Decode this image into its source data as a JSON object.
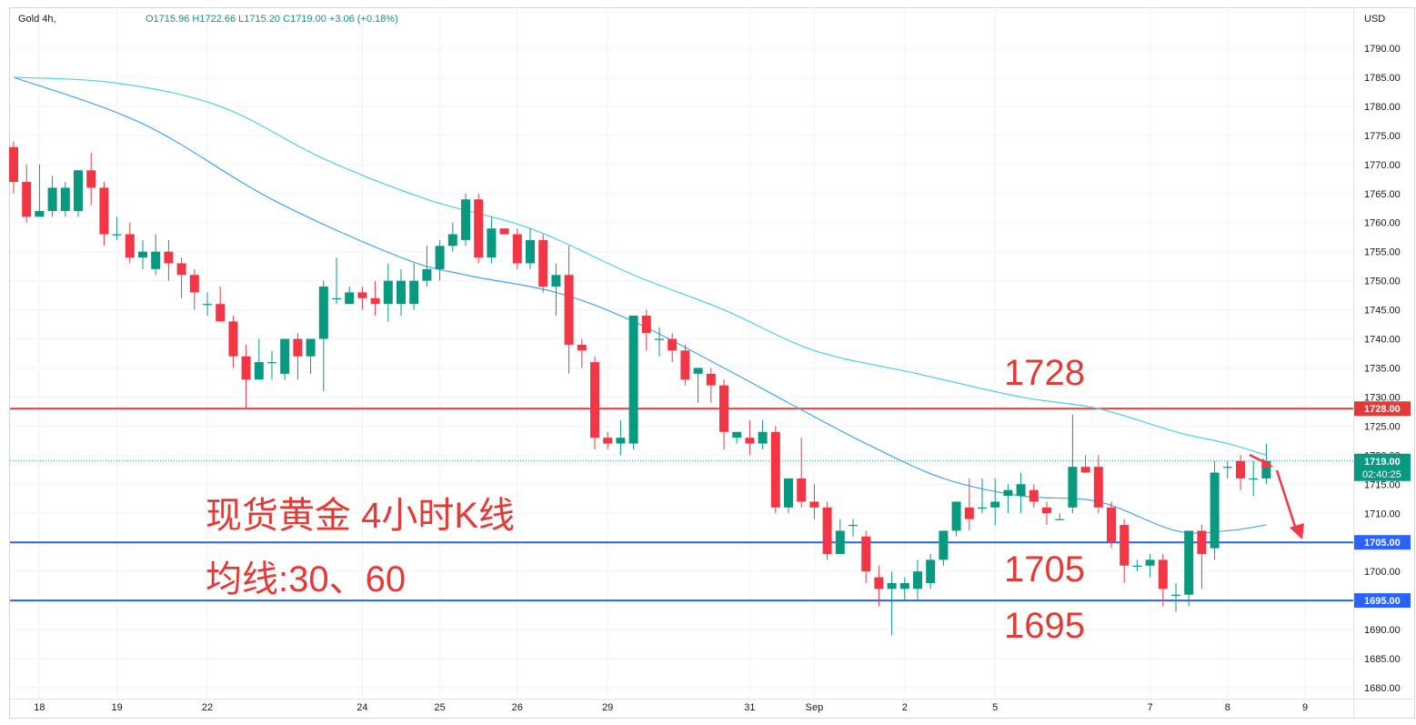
{
  "header": {
    "symbol": "Gold",
    "interval": "4h,",
    "open": "O1715.96",
    "high": "H1722.66",
    "low": "L1715.20",
    "close": "C1719.00",
    "change": "+3.06 (+0.18%)"
  },
  "currency": "USD",
  "annotations": {
    "title_line1": "现货黄金 4小时K线",
    "title_line2": "均线:30、60",
    "resistance_text": "1728",
    "support1_text": "1705",
    "support2_text": "1695"
  },
  "price_badges": {
    "last_price": "1719.00",
    "countdown": "02:40:25",
    "resistance": "1728.00",
    "support1": "1705.00",
    "support2": "1695.00"
  },
  "colors": {
    "up": "#089981",
    "down": "#f23645",
    "ma30": "#42a5f5",
    "ma60": "#4dd0e1",
    "resistance_line": "#e53935",
    "support_line": "#2962ff",
    "annotation": "#e53935",
    "grid": "#f0f3fa"
  },
  "chart_data": {
    "type": "candlestick",
    "title": "",
    "y_axis": {
      "range": [
        1678,
        1793
      ],
      "ticks": [
        1680,
        1685,
        1690,
        1695,
        1700,
        1705,
        1710,
        1715,
        1720,
        1725,
        1730,
        1735,
        1740,
        1745,
        1750,
        1755,
        1760,
        1765,
        1770,
        1775,
        1780,
        1785,
        1790
      ]
    },
    "x_axis": {
      "tick_labels": [
        "18",
        "19",
        "22",
        "24",
        "25",
        "26",
        "29",
        "31",
        "Sep",
        "2",
        "5",
        "7",
        "8",
        "9"
      ],
      "tick_bar_index": [
        2,
        8,
        15,
        27,
        33,
        39,
        46,
        57,
        62,
        69,
        76,
        88,
        94,
        100
      ]
    },
    "grid": true,
    "ohlc": [
      [
        1773,
        1774,
        1765,
        1767
      ],
      [
        1767,
        1770,
        1760,
        1761
      ],
      [
        1761,
        1770,
        1761,
        1762
      ],
      [
        1762,
        1768,
        1761,
        1766
      ],
      [
        1762,
        1767,
        1761,
        1766
      ],
      [
        1762,
        1769,
        1761,
        1769
      ],
      [
        1769,
        1772,
        1763,
        1766
      ],
      [
        1766,
        1767,
        1756,
        1758
      ],
      [
        1758,
        1761,
        1757,
        1758
      ],
      [
        1758,
        1760,
        1753,
        1754
      ],
      [
        1754,
        1757,
        1752,
        1755
      ],
      [
        1752,
        1758,
        1751,
        1755
      ],
      [
        1755,
        1757,
        1750,
        1753
      ],
      [
        1753,
        1754,
        1747,
        1751
      ],
      [
        1751,
        1752,
        1745,
        1748
      ],
      [
        1746,
        1748,
        1744,
        1746
      ],
      [
        1746,
        1749,
        1743,
        1743
      ],
      [
        1743,
        1744,
        1735,
        1737
      ],
      [
        1737,
        1739,
        1728,
        1733
      ],
      [
        1733,
        1740,
        1733,
        1736
      ],
      [
        1736,
        1738,
        1733,
        1736
      ],
      [
        1734,
        1740,
        1733,
        1740
      ],
      [
        1740,
        1741,
        1733,
        1737
      ],
      [
        1737,
        1740,
        1734,
        1740
      ],
      [
        1740,
        1750,
        1731,
        1749
      ],
      [
        1747,
        1754,
        1746,
        1747
      ],
      [
        1746,
        1749,
        1746,
        1748
      ],
      [
        1748,
        1749,
        1745,
        1747
      ],
      [
        1747,
        1750,
        1744,
        1746
      ],
      [
        1746,
        1753,
        1743,
        1750
      ],
      [
        1746,
        1752,
        1744,
        1750
      ],
      [
        1746,
        1753,
        1745,
        1750
      ],
      [
        1750,
        1756,
        1749,
        1752
      ],
      [
        1752,
        1757,
        1750,
        1756
      ],
      [
        1756,
        1760,
        1755,
        1758
      ],
      [
        1757,
        1765,
        1756,
        1764
      ],
      [
        1764,
        1765,
        1753,
        1754
      ],
      [
        1754,
        1761,
        1753,
        1759
      ],
      [
        1759,
        1759,
        1758,
        1758
      ],
      [
        1758,
        1759,
        1752,
        1753
      ],
      [
        1753,
        1759,
        1752,
        1757
      ],
      [
        1757,
        1758,
        1748,
        1749
      ],
      [
        1749,
        1753,
        1744,
        1751
      ],
      [
        1751,
        1756,
        1734,
        1739
      ],
      [
        1739,
        1740,
        1735,
        1738
      ],
      [
        1736,
        1737,
        1721,
        1723
      ],
      [
        1723,
        1724,
        1721,
        1722
      ],
      [
        1722,
        1726,
        1720,
        1723
      ],
      [
        1722,
        1744,
        1721,
        1744
      ],
      [
        1744,
        1745,
        1738,
        1741
      ],
      [
        1740,
        1742,
        1737,
        1740
      ],
      [
        1740,
        1741,
        1736,
        1738
      ],
      [
        1738,
        1739,
        1732,
        1733
      ],
      [
        1734,
        1735,
        1729,
        1735
      ],
      [
        1734,
        1735,
        1729,
        1732
      ],
      [
        1732,
        1733,
        1721,
        1724
      ],
      [
        1723,
        1724,
        1722,
        1724
      ],
      [
        1723,
        1726,
        1720,
        1722
      ],
      [
        1722,
        1726,
        1721,
        1724
      ],
      [
        1724,
        1725,
        1710,
        1711
      ],
      [
        1711,
        1716,
        1710,
        1716
      ],
      [
        1716,
        1723,
        1711,
        1712
      ],
      [
        1712,
        1715,
        1709,
        1711
      ],
      [
        1711,
        1712,
        1702,
        1703
      ],
      [
        1703,
        1709,
        1703,
        1707
      ],
      [
        1708,
        1709,
        1706,
        1708
      ],
      [
        1706,
        1707,
        1698,
        1700
      ],
      [
        1699,
        1701,
        1694,
        1697
      ],
      [
        1697,
        1700,
        1689,
        1698
      ],
      [
        1697,
        1699,
        1695,
        1698
      ],
      [
        1697,
        1702,
        1695,
        1700
      ],
      [
        1698,
        1703,
        1697,
        1702
      ],
      [
        1702,
        1706,
        1701,
        1707
      ],
      [
        1707,
        1712,
        1706,
        1712
      ],
      [
        1711,
        1716,
        1707,
        1709
      ],
      [
        1711,
        1716,
        1710,
        1711
      ],
      [
        1711,
        1716,
        1708,
        1712
      ],
      [
        1713,
        1715,
        1710,
        1714
      ],
      [
        1713,
        1717,
        1710,
        1715
      ],
      [
        1714,
        1715,
        1711,
        1712
      ],
      [
        1711,
        1712,
        1708,
        1710
      ],
      [
        1709,
        1710,
        1709,
        1709
      ],
      [
        1711,
        1727,
        1710,
        1718
      ],
      [
        1718,
        1720,
        1717,
        1717
      ],
      [
        1718,
        1720,
        1710,
        1711
      ],
      [
        1711,
        1712,
        1704,
        1705
      ],
      [
        1708,
        1709,
        1698,
        1701
      ],
      [
        1701,
        1702,
        1700,
        1701
      ],
      [
        1701,
        1703,
        1699,
        1702
      ],
      [
        1702,
        1703,
        1694,
        1697
      ],
      [
        1696,
        1698,
        1693,
        1696
      ],
      [
        1696,
        1707,
        1694,
        1707
      ],
      [
        1707,
        1708,
        1697,
        1703
      ],
      [
        1704,
        1719,
        1702,
        1717
      ],
      [
        1718,
        1719,
        1716,
        1718
      ],
      [
        1719,
        1720,
        1714,
        1716
      ],
      [
        1716,
        1719,
        1713,
        1716
      ],
      [
        1716,
        1722,
        1715,
        1719
      ]
    ],
    "series": [
      {
        "key": "ma30",
        "points": [
          [
            0,
            1785
          ],
          [
            10,
            1777
          ],
          [
            20,
            1764
          ],
          [
            30,
            1754
          ],
          [
            35,
            1751
          ],
          [
            42,
            1748
          ],
          [
            48,
            1743
          ],
          [
            55,
            1735
          ],
          [
            60,
            1729
          ],
          [
            66,
            1722
          ],
          [
            72,
            1716
          ],
          [
            78,
            1713
          ],
          [
            84,
            1712
          ],
          [
            90,
            1707
          ],
          [
            94,
            1707
          ],
          [
            97,
            1708
          ]
        ]
      },
      {
        "key": "ma60",
        "points": [
          [
            0,
            1785
          ],
          [
            8,
            1784
          ],
          [
            16,
            1780
          ],
          [
            24,
            1771
          ],
          [
            32,
            1764
          ],
          [
            40,
            1759
          ],
          [
            48,
            1751
          ],
          [
            55,
            1745
          ],
          [
            62,
            1738
          ],
          [
            70,
            1734
          ],
          [
            78,
            1730
          ],
          [
            84,
            1728
          ],
          [
            90,
            1724
          ],
          [
            94,
            1722
          ],
          [
            97,
            1720
          ]
        ]
      }
    ],
    "levels": [
      {
        "key": "resistance",
        "price": 1728
      },
      {
        "key": "support1",
        "price": 1705
      },
      {
        "key": "support2",
        "price": 1695
      }
    ],
    "last_price": 1719
  }
}
